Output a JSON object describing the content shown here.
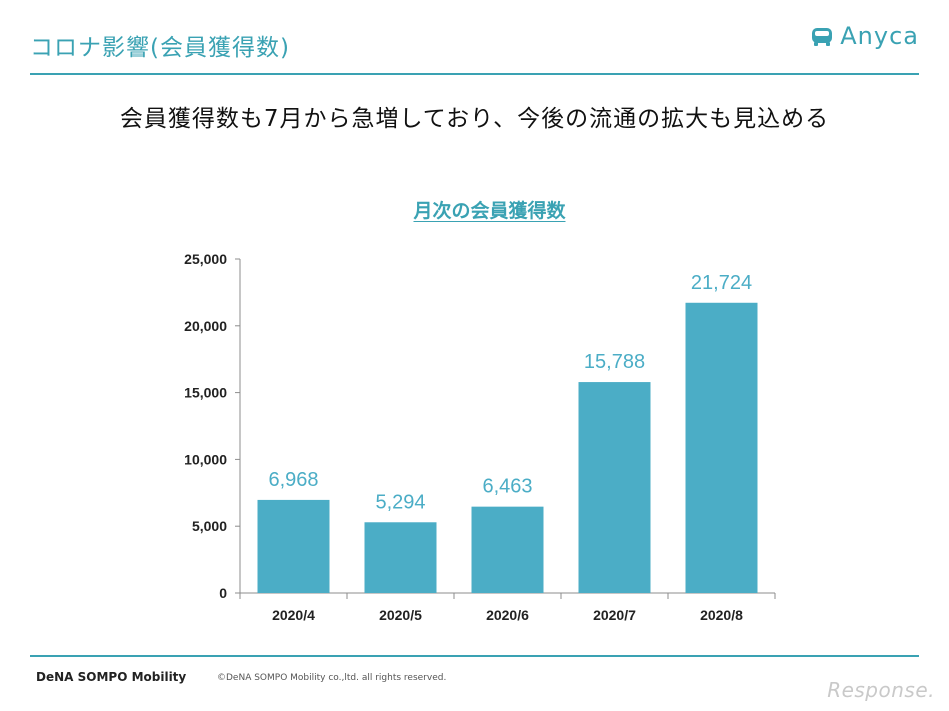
{
  "header": {
    "title": "コロナ影響(会員獲得数)",
    "brand": "Anyca"
  },
  "headline": "会員獲得数も7月から急増しており、今後の流通の拡大も見込める",
  "chart_data": {
    "type": "bar",
    "title": "月次の会員獲得数",
    "categories": [
      "2020/4",
      "2020/5",
      "2020/6",
      "2020/7",
      "2020/8"
    ],
    "values": [
      6968,
      5294,
      6463,
      15788,
      21724
    ],
    "data_labels": [
      "6,968",
      "5,294",
      "6,463",
      "15,788",
      "21,724"
    ],
    "ylim": [
      0,
      25000
    ],
    "yticks": [
      0,
      5000,
      10000,
      15000,
      20000,
      25000
    ],
    "ytick_labels": [
      "0",
      "5,000",
      "10,000",
      "15,000",
      "20,000",
      "25,000"
    ],
    "grid": false,
    "legend": "none",
    "bar_color": "#4badc6",
    "label_color": "#4badc6"
  },
  "footer": {
    "company": "DeNA SOMPO Mobility",
    "copyright": "©DeNA SOMPO Mobility co.,ltd. all rights reserved."
  },
  "watermark": "Response."
}
